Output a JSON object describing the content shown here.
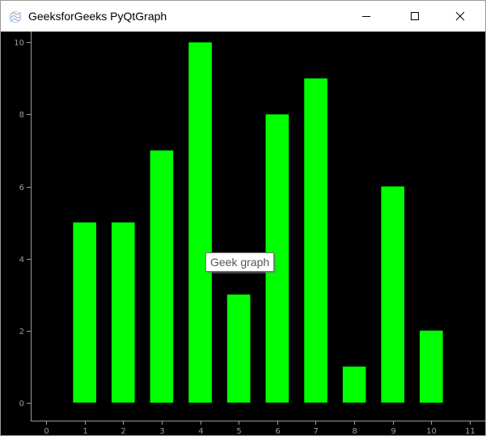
{
  "window": {
    "title": "GeeksforGeeks PyQtGraph",
    "icon": "pyqtgraph-icon",
    "controls": [
      "minimize-icon",
      "maximize-icon",
      "close-icon"
    ]
  },
  "tooltip": {
    "text": "Geek graph"
  },
  "colors": {
    "bar": "#00ff00",
    "background": "#000000",
    "axis": "#9a9a9a"
  },
  "chart_data": {
    "type": "bar",
    "x": [
      1,
      2,
      3,
      4,
      5,
      6,
      7,
      8,
      9,
      10
    ],
    "values": [
      5,
      5,
      7,
      10,
      3,
      8,
      9,
      1,
      6,
      2
    ],
    "bar_width": 0.6,
    "xlim": [
      -0.4,
      11.4
    ],
    "ylim": [
      -0.5,
      10.3
    ],
    "xticks": [
      0,
      1,
      2,
      3,
      4,
      5,
      6,
      7,
      8,
      9,
      10,
      11
    ],
    "yticks": [
      0,
      2,
      4,
      6,
      8,
      10
    ],
    "title": "",
    "xlabel": "",
    "ylabel": "",
    "grid": false,
    "legend": "none"
  }
}
